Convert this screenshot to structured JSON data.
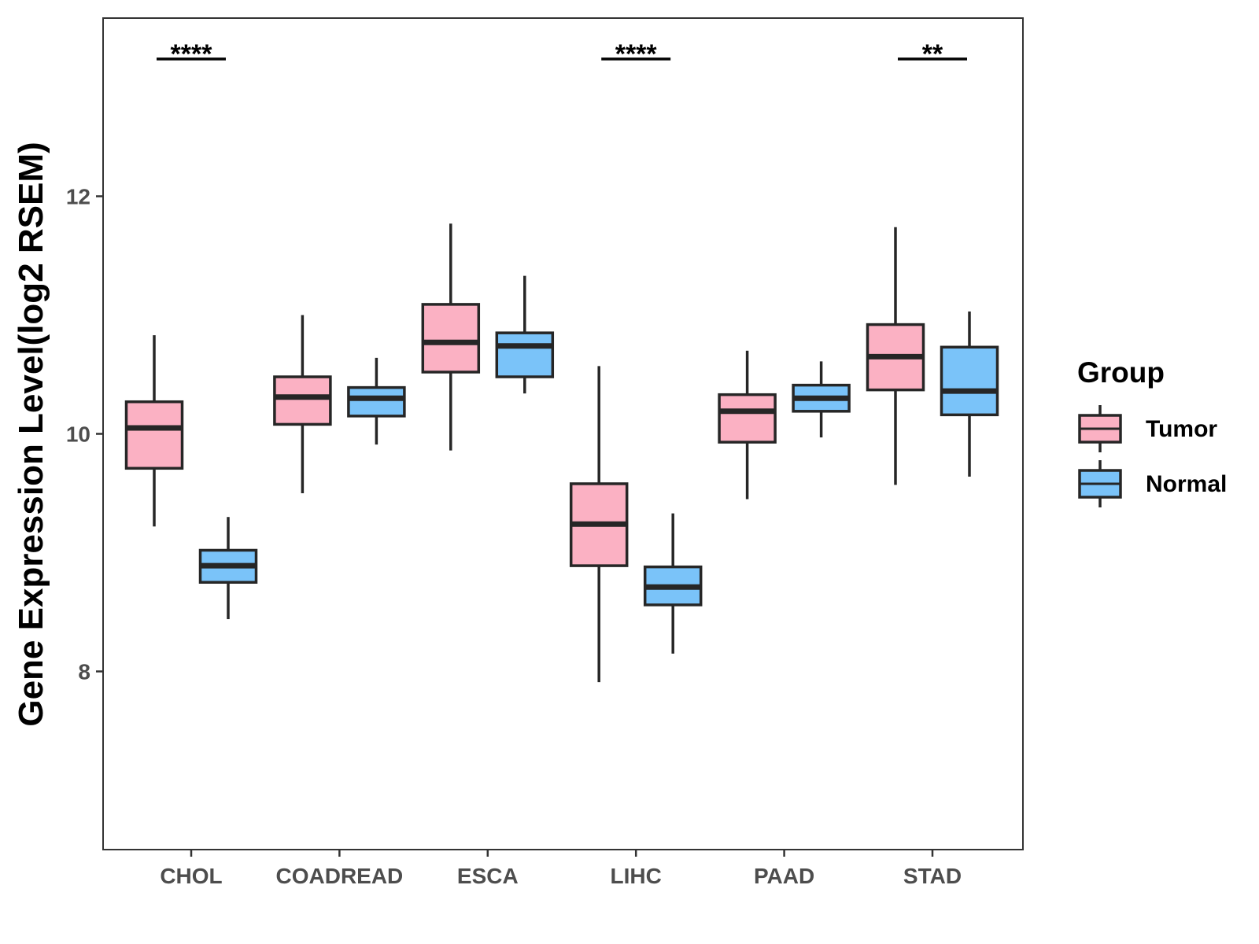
{
  "chart_data": {
    "type": "boxplot",
    "title": "",
    "xlabel": "",
    "ylabel": "Gene Expression Level(log2 RSEM)",
    "ylim": [
      6.5,
      13.5
    ],
    "yticks": [
      8,
      10,
      12
    ],
    "ytick_labels": [
      "8",
      "10",
      "12"
    ],
    "grid": false,
    "categories": [
      "CHOL",
      "COADREAD",
      "ESCA",
      "LIHC",
      "PAAD",
      "STAD"
    ],
    "series": [
      {
        "name": "Tumor",
        "color": "#FBB1C3",
        "boxes": [
          {
            "min": 9.22,
            "q1": 9.71,
            "median": 10.05,
            "q3": 10.27,
            "max": 10.83
          },
          {
            "min": 9.5,
            "q1": 10.08,
            "median": 10.31,
            "q3": 10.48,
            "max": 11.0
          },
          {
            "min": 9.86,
            "q1": 10.52,
            "median": 10.77,
            "q3": 11.09,
            "max": 11.77
          },
          {
            "min": 7.91,
            "q1": 8.89,
            "median": 9.24,
            "q3": 9.58,
            "max": 10.57
          },
          {
            "min": 9.45,
            "q1": 9.93,
            "median": 10.19,
            "q3": 10.33,
            "max": 10.7
          },
          {
            "min": 9.57,
            "q1": 10.37,
            "median": 10.65,
            "q3": 10.92,
            "max": 11.74
          }
        ]
      },
      {
        "name": "Normal",
        "color": "#7AC3F9",
        "boxes": [
          {
            "min": 8.44,
            "q1": 8.75,
            "median": 8.89,
            "q3": 9.02,
            "max": 9.3
          },
          {
            "min": 9.91,
            "q1": 10.15,
            "median": 10.3,
            "q3": 10.39,
            "max": 10.64
          },
          {
            "min": 10.34,
            "q1": 10.48,
            "median": 10.74,
            "q3": 10.85,
            "max": 11.33
          },
          {
            "min": 8.15,
            "q1": 8.56,
            "median": 8.71,
            "q3": 8.88,
            "max": 9.33
          },
          {
            "min": 9.97,
            "q1": 10.19,
            "median": 10.3,
            "q3": 10.41,
            "max": 10.61
          },
          {
            "min": 9.64,
            "q1": 10.16,
            "median": 10.36,
            "q3": 10.73,
            "max": 11.03
          }
        ]
      }
    ],
    "significance": [
      {
        "category": "CHOL",
        "label": "****"
      },
      {
        "category": "LIHC",
        "label": "****"
      },
      {
        "category": "STAD",
        "label": "**"
      }
    ],
    "legend": {
      "title": "Group",
      "position": "right",
      "entries": [
        {
          "label": "Tumor",
          "color": "#FBB1C3"
        },
        {
          "label": "Normal",
          "color": "#7AC3F9"
        }
      ]
    }
  }
}
